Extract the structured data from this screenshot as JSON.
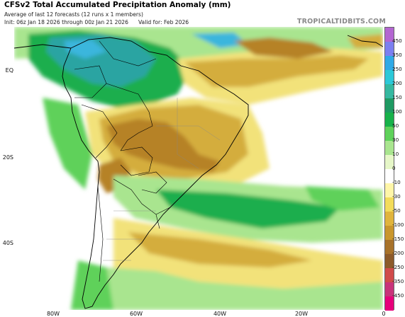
{
  "header": {
    "title": "CFSv2 Total Accumulated Precipitation Anomaly (mm)",
    "subtitle": "Average of last 12 forecasts (12 runs x 1 members)",
    "init": "Init: 06z Jan 18 2026 through 00z Jan 21 2026",
    "valid": "Valid for: Feb 2026",
    "brand": "TROPICALTIDBITS.COM"
  },
  "axes": {
    "lat_labels": [
      "EQ",
      "20S",
      "40S"
    ],
    "lon_labels": [
      "80W",
      "60W",
      "40W",
      "20W",
      "0"
    ]
  },
  "colorbar": {
    "labels": [
      "450",
      "350",
      "250",
      "200",
      "150",
      "100",
      "50",
      "30",
      "10",
      "0",
      "-10",
      "-30",
      "-50",
      "-100",
      "-150",
      "-200",
      "-250",
      "-350",
      "-450"
    ],
    "colors": [
      "#b366d1",
      "#7b7ff0",
      "#2fa9e6",
      "#2cc8d8",
      "#35b8a0",
      "#1f9a63",
      "#17b14a",
      "#5ed15a",
      "#a9e58f",
      "#e6f7c8",
      "#ffffff",
      "#fff6a8",
      "#f3dc5a",
      "#e0b43c",
      "#c9962c",
      "#a8722a",
      "#8c5a2a",
      "#d04a4a",
      "#c8337a",
      "#e6007a"
    ]
  },
  "colors": {
    "land_border": "#000000",
    "dry_strong": "#b68225",
    "dry": "#d4ad3c",
    "dry_light": "#f2e27a",
    "wet": "#1fae4d",
    "wet_light": "#8fdc7e",
    "wet_strong": "#2aa4a2",
    "very_wet": "#3ab6dd"
  }
}
